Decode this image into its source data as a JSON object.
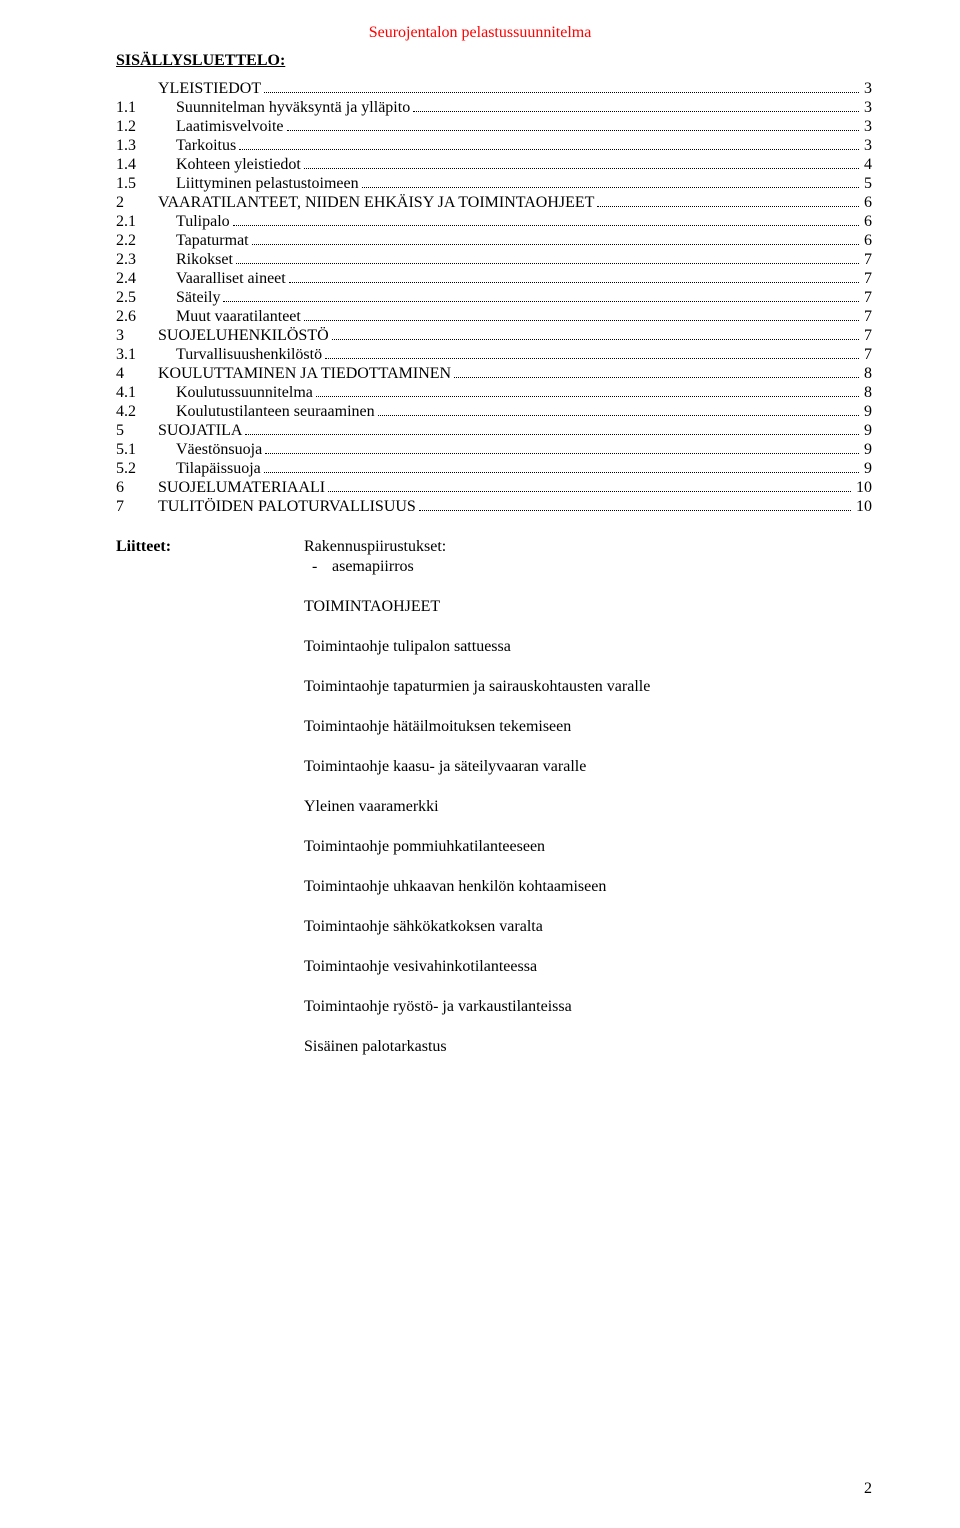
{
  "header": {
    "title": "Seurojentalon pelastussuunnitelma"
  },
  "toc_heading": "SISÄLLYSLUETTELO:",
  "toc": [
    {
      "level": 1,
      "num": "",
      "label": "YLEISTIEDOT",
      "page": "3"
    },
    {
      "level": 2,
      "num": "1.1",
      "label": "Suunnitelman hyväksyntä ja ylläpito",
      "page": "3"
    },
    {
      "level": 2,
      "num": "1.2",
      "label": "Laatimisvelvoite",
      "page": "3"
    },
    {
      "level": 2,
      "num": "1.3",
      "label": "Tarkoitus",
      "page": "3"
    },
    {
      "level": 2,
      "num": "1.4",
      "label": "Kohteen yleistiedot",
      "page": "4"
    },
    {
      "level": 2,
      "num": "1.5",
      "label": "Liittyminen pelastustoimeen",
      "page": "5"
    },
    {
      "level": 1,
      "num": "2",
      "label": "VAARATILANTEET, NIIDEN EHKÄISY JA TOIMINTAOHJEET",
      "page": "6"
    },
    {
      "level": 2,
      "num": "2.1",
      "label": "Tulipalo",
      "page": "6"
    },
    {
      "level": 2,
      "num": "2.2",
      "label": "Tapaturmat",
      "page": "6"
    },
    {
      "level": 2,
      "num": "2.3",
      "label": "Rikokset",
      "page": "7"
    },
    {
      "level": 2,
      "num": "2.4",
      "label": "Vaaralliset aineet",
      "page": "7"
    },
    {
      "level": 2,
      "num": "2.5",
      "label": "Säteily",
      "page": "7"
    },
    {
      "level": 2,
      "num": "2.6",
      "label": "Muut vaaratilanteet",
      "page": "7"
    },
    {
      "level": 1,
      "num": "3",
      "label": "SUOJELUHENKILÖSTÖ",
      "page": "7"
    },
    {
      "level": 2,
      "num": "3.1",
      "label": "Turvallisuushenkilöstö",
      "page": "7"
    },
    {
      "level": 1,
      "num": "4",
      "label": "KOULUTTAMINEN JA TIEDOTTAMINEN",
      "page": "8"
    },
    {
      "level": 2,
      "num": "4.1",
      "label": "Koulutussuunnitelma",
      "page": "8"
    },
    {
      "level": 2,
      "num": "4.2",
      "label": "Koulutustilanteen seuraaminen",
      "page": "9"
    },
    {
      "level": 1,
      "num": "5",
      "label": "SUOJATILA",
      "page": "9"
    },
    {
      "level": 2,
      "num": "5.1",
      "label": "Väestönsuoja",
      "page": "9"
    },
    {
      "level": 2,
      "num": "5.2",
      "label": "Tilapäissuoja",
      "page": "9"
    },
    {
      "level": 1,
      "num": "6",
      "label": "SUOJELUMATERIAALI",
      "page": "10"
    },
    {
      "level": 1,
      "num": "7",
      "label": "TULITÖIDEN PALOTURVALLISUUS",
      "page": "10"
    }
  ],
  "attachments": {
    "label": "Liitteet:",
    "intro": "Rakennuspiirustukset:",
    "intro_bullet": "asemapiirros",
    "sub_heading": "TOIMINTAOHJEET",
    "items": [
      "Toimintaohje tulipalon sattuessa",
      "Toimintaohje tapaturmien ja sairauskohtausten varalle",
      "Toimintaohje hätäilmoituksen tekemiseen",
      "Toimintaohje kaasu- ja säteilyvaaran varalle",
      "Yleinen vaaramerkki",
      "Toimintaohje pommiuhkatilanteeseen",
      "Toimintaohje uhkaavan henkilön kohtaamiseen",
      "Toimintaohje sähkökatkoksen varalta",
      "Toimintaohje vesivahinkotilanteessa",
      "Toimintaohje ryöstö- ja varkaustilanteissa",
      "Sisäinen palotarkastus"
    ]
  },
  "page_number": "2"
}
